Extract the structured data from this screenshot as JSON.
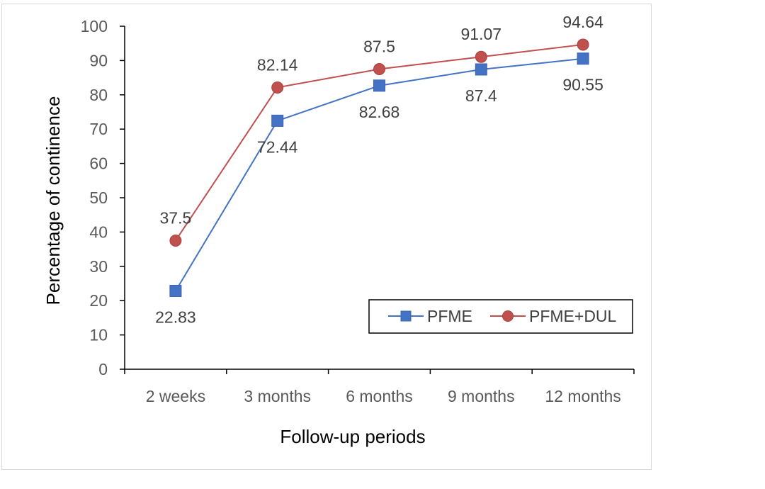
{
  "chart_data": {
    "type": "line",
    "categories": [
      "2 weeks",
      "3 months",
      "6 months",
      "9 months",
      "12 months"
    ],
    "series": [
      {
        "name": "PFME",
        "values": [
          22.83,
          72.44,
          82.68,
          87.4,
          90.55
        ],
        "color": "#4472c4",
        "marker": "square"
      },
      {
        "name": "PFME+DUL",
        "values": [
          37.5,
          82.14,
          87.5,
          91.07,
          94.64
        ],
        "color": "#c0504d",
        "marker": "circle"
      }
    ],
    "data_labels": [
      [
        "22.83",
        "72.44",
        "82.68",
        "87.4",
        "90.55"
      ],
      [
        "37.5",
        "82.14",
        "87.5",
        "91.07",
        "94.64"
      ]
    ],
    "yticks": [
      "0",
      "10",
      "20",
      "30",
      "40",
      "50",
      "60",
      "70",
      "80",
      "90",
      "100"
    ],
    "xlabel": "Follow-up periods",
    "ylabel": "Percentage of continence",
    "ylim": [
      0,
      100
    ],
    "grid": false,
    "legend_position": "bottom-right"
  }
}
